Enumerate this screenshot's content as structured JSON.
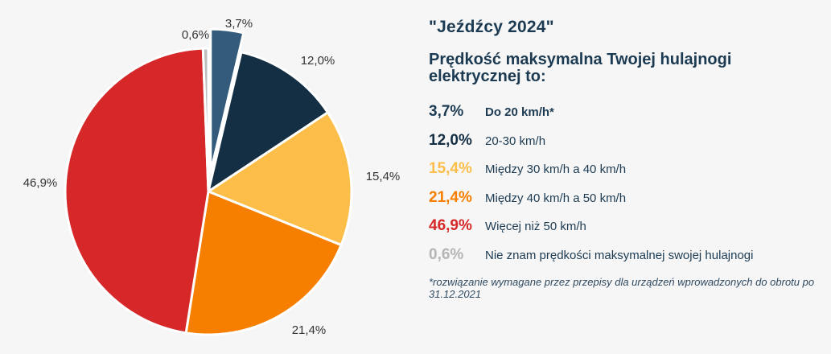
{
  "chart_data": {
    "type": "pie",
    "slices": [
      {
        "value": 3.7,
        "label": "3,7%",
        "category": "Do 20 km/h*",
        "color": "#345b7c",
        "legend_bold": true
      },
      {
        "value": 12.0,
        "label": "12,0%",
        "category": "20-30 km/h",
        "color": "#142f43",
        "legend_bold": false
      },
      {
        "value": 15.4,
        "label": "15,4%",
        "category": "Między 30 km/h a 40 km/h",
        "color": "#fdbe49",
        "legend_bold": false
      },
      {
        "value": 21.4,
        "label": "21,4%",
        "category": "Między 40 km/h a 50 km/h",
        "color": "#f77f00",
        "legend_bold": false
      },
      {
        "value": 46.9,
        "label": "46,9%",
        "category": "Więcej niż 50 km/h",
        "color": "#d62828",
        "legend_bold": false
      },
      {
        "value": 0.6,
        "label": "0,6%",
        "category": "Nie znam prędkości maksymalnej swojej hulajnogi",
        "color": "#bdbdbd",
        "legend_bold": false
      }
    ],
    "exploded_slice": "3,7%",
    "start": "12 o'clock",
    "direction": "clockwise"
  },
  "header": {
    "subtitle": "\"Jeźdźcy 2024\"",
    "question": "Prędkość maksymalna Twojej hulajnogi elektrycznej to:"
  },
  "legend": {
    "value_colors": [
      "#1c3b52",
      "#142f43",
      "#fdbe49",
      "#f77f00",
      "#d62828",
      "#b5b5b5"
    ]
  },
  "footnote": "*rozwiązanie wymagane przez przepisy dla urządzeń wprowadzonych do obrotu po 31.12.2021"
}
